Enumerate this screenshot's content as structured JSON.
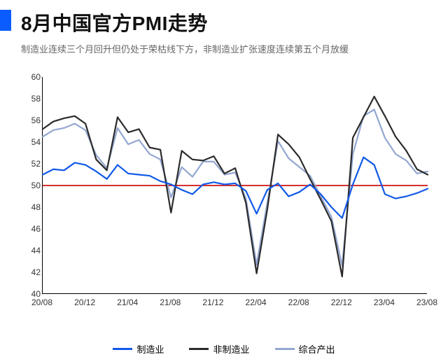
{
  "header": {
    "title": "8月中国官方PMI走势",
    "subtitle": "制造业连续三个月回升但仍处于荣枯线下方，非制造业扩张速度连续第五个月放缓",
    "accent_color": "#0a5cff"
  },
  "chart": {
    "type": "line",
    "background_color": "#ffffff",
    "axis_color": "#000000",
    "grid_on": false,
    "title_fontsize": 28,
    "label_fontsize": 12,
    "line_width": 2.2,
    "ylim": [
      40,
      60
    ],
    "ytick_step": 2,
    "yticks": [
      40,
      42,
      44,
      46,
      48,
      50,
      52,
      54,
      56,
      58,
      60
    ],
    "reference_line": {
      "value": 50,
      "color": "#d62f2f",
      "width": 2
    },
    "x_categories": [
      "20/08",
      "20/09",
      "20/10",
      "20/11",
      "20/12",
      "21/01",
      "21/02",
      "21/03",
      "21/04",
      "21/05",
      "21/06",
      "21/07",
      "21/08",
      "21/09",
      "21/10",
      "21/11",
      "21/12",
      "22/01",
      "22/02",
      "22/03",
      "22/04",
      "22/05",
      "22/06",
      "22/07",
      "22/08",
      "22/09",
      "22/10",
      "22/11",
      "22/12",
      "23/01",
      "23/02",
      "23/03",
      "23/04",
      "23/05",
      "23/06",
      "23/07",
      "23/08"
    ],
    "x_tick_labels": [
      "20/08",
      "20/12",
      "21/04",
      "21/08",
      "21/12",
      "22/04",
      "22/08",
      "22/12",
      "23/04",
      "23/08"
    ],
    "x_tick_indices": [
      0,
      4,
      8,
      12,
      16,
      20,
      24,
      28,
      32,
      36
    ],
    "series": [
      {
        "name": "制造业",
        "color": "#1159e8",
        "values": [
          51.0,
          51.5,
          51.4,
          52.1,
          51.9,
          51.3,
          50.6,
          51.9,
          51.1,
          51.0,
          50.9,
          50.4,
          50.1,
          49.6,
          49.2,
          50.1,
          50.3,
          50.1,
          50.2,
          49.5,
          47.4,
          49.6,
          50.2,
          49.0,
          49.4,
          50.1,
          49.2,
          48.0,
          47.0,
          50.1,
          52.6,
          51.9,
          49.2,
          48.8,
          49.0,
          49.3,
          49.7
        ]
      },
      {
        "name": "非制造业",
        "color": "#2b2b2b",
        "values": [
          55.2,
          55.9,
          56.2,
          56.4,
          55.7,
          52.4,
          51.4,
          56.3,
          54.9,
          55.2,
          53.5,
          53.3,
          47.5,
          53.2,
          52.4,
          52.3,
          52.7,
          51.1,
          51.6,
          48.4,
          41.9,
          47.8,
          54.7,
          53.8,
          52.6,
          50.6,
          48.7,
          46.7,
          41.6,
          54.4,
          56.3,
          58.2,
          56.4,
          54.5,
          53.2,
          51.5,
          51.0
        ]
      },
      {
        "name": "综合产出",
        "color": "#93a7d1",
        "values": [
          54.5,
          55.1,
          55.3,
          55.7,
          55.1,
          52.8,
          51.6,
          55.3,
          53.8,
          54.2,
          52.9,
          52.4,
          48.9,
          51.7,
          50.8,
          52.2,
          52.2,
          51.0,
          51.2,
          48.8,
          42.7,
          48.4,
          54.1,
          52.5,
          51.7,
          50.9,
          49.0,
          47.1,
          42.6,
          52.9,
          56.4,
          57.0,
          54.4,
          52.9,
          52.3,
          51.1,
          51.3
        ]
      }
    ],
    "legend": {
      "position": "bottom",
      "fontsize": 13
    }
  }
}
